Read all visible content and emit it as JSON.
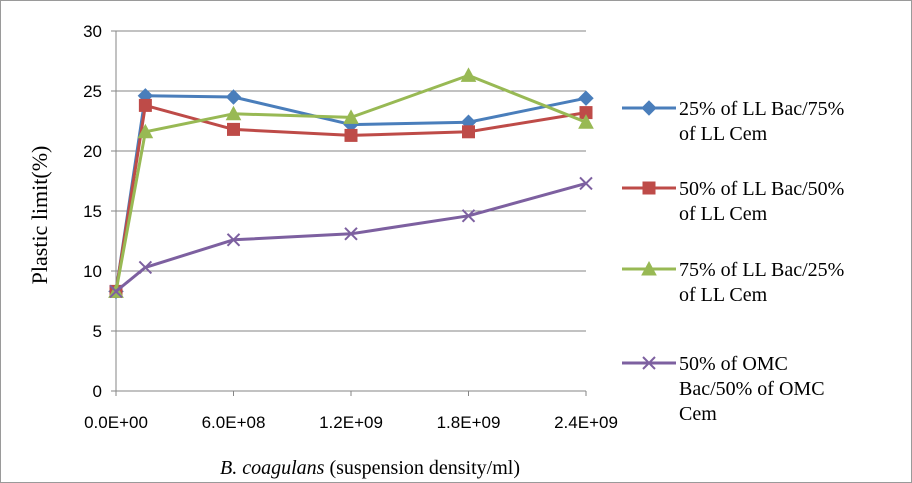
{
  "chart_data": {
    "type": "line",
    "title": "",
    "xlabel_italic": "B. coagulans",
    "xlabel_rest": " (suspension density/ml)",
    "ylabel": "Plastic  limit(%)",
    "ylim": [
      0,
      30
    ],
    "xlim": [
      0,
      2400000000
    ],
    "y_ticks": [
      "0",
      "5",
      "10",
      "15",
      "20",
      "25",
      "30"
    ],
    "x_ticks": [
      "0.0E+00",
      "6.0E+08",
      "1.2E+09",
      "1.8E+09",
      "2.4E+09"
    ],
    "x_tick_values": [
      0,
      600000000,
      1200000000,
      1800000000,
      2400000000
    ],
    "grid": "horizontal",
    "legend_position": "right",
    "x": [
      0,
      150000000,
      600000000,
      1200000000,
      1800000000,
      2400000000
    ],
    "series": [
      {
        "name_lines": [
          "25% of LL Bac/75%",
          "of LL Cem"
        ],
        "color": "#4a7ebb",
        "marker": "diamond",
        "values": [
          8.3,
          24.6,
          24.5,
          22.2,
          22.4,
          24.4
        ]
      },
      {
        "name_lines": [
          "50%  of LL Bac/50%",
          "of LL  Cem"
        ],
        "color": "#be4b48",
        "marker": "square",
        "values": [
          8.3,
          23.8,
          21.8,
          21.3,
          21.6,
          23.2
        ]
      },
      {
        "name_lines": [
          "75% of LL Bac/25%",
          "of LL Cem"
        ],
        "color": "#98b954",
        "marker": "triangle",
        "values": [
          8.3,
          21.6,
          23.1,
          22.8,
          26.3,
          22.4
        ]
      },
      {
        "name_lines": [
          "50% of OMC",
          "Bac/50% of OMC",
          "Cem"
        ],
        "color": "#7d60a0",
        "marker": "x",
        "values": [
          8.3,
          10.3,
          12.6,
          13.1,
          14.6,
          17.3
        ]
      }
    ]
  }
}
